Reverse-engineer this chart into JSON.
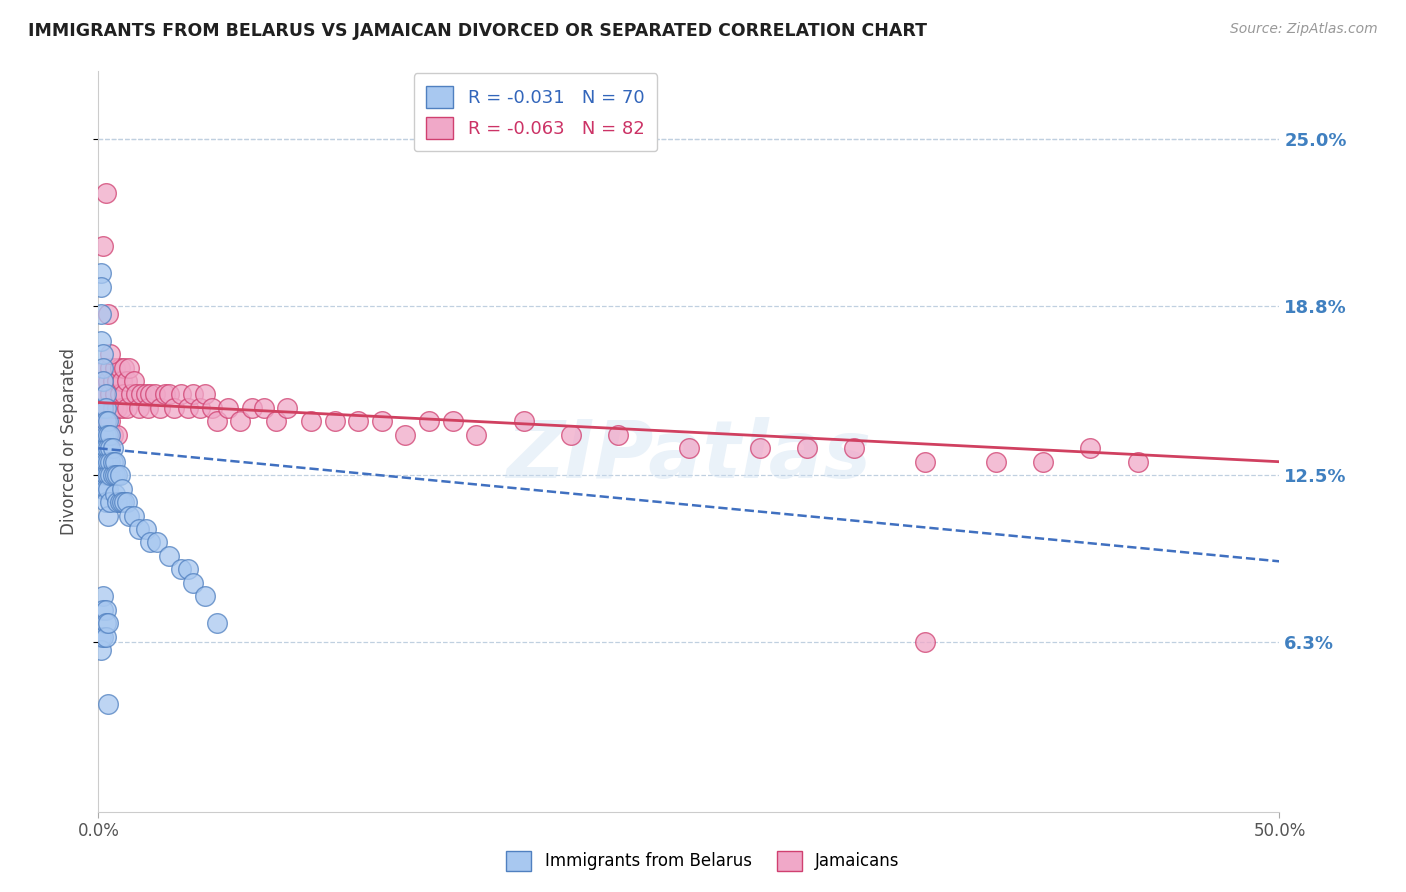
{
  "title": "IMMIGRANTS FROM BELARUS VS JAMAICAN DIVORCED OR SEPARATED CORRELATION CHART",
  "source": "Source: ZipAtlas.com",
  "ylabel": "Divorced or Separated",
  "ytick_labels": [
    "25.0%",
    "18.8%",
    "12.5%",
    "6.3%"
  ],
  "ytick_values": [
    0.25,
    0.188,
    0.125,
    0.063
  ],
  "xlim": [
    0.0,
    0.5
  ],
  "ylim": [
    0.0,
    0.275
  ],
  "legend_blue_r": "R = -0.031",
  "legend_blue_n": "N = 70",
  "legend_pink_r": "R = -0.063",
  "legend_pink_n": "N = 82",
  "blue_color": "#a8c8f0",
  "pink_color": "#f0a8c8",
  "blue_edge_color": "#5080c0",
  "pink_edge_color": "#d04070",
  "blue_line_color": "#4070c0",
  "pink_line_color": "#d04060",
  "grid_color": "#c0d0e0",
  "title_color": "#202020",
  "axis_label_color": "#505050",
  "right_tick_color": "#4080c0",
  "watermark": "ZIPatlas",
  "blue_scatter_x": [
    0.001,
    0.001,
    0.001,
    0.001,
    0.002,
    0.002,
    0.002,
    0.002,
    0.002,
    0.002,
    0.002,
    0.002,
    0.002,
    0.003,
    0.003,
    0.003,
    0.003,
    0.003,
    0.003,
    0.003,
    0.003,
    0.003,
    0.004,
    0.004,
    0.004,
    0.004,
    0.004,
    0.004,
    0.004,
    0.005,
    0.005,
    0.005,
    0.005,
    0.005,
    0.006,
    0.006,
    0.006,
    0.007,
    0.007,
    0.007,
    0.008,
    0.008,
    0.009,
    0.009,
    0.01,
    0.01,
    0.011,
    0.012,
    0.013,
    0.015,
    0.017,
    0.02,
    0.022,
    0.025,
    0.03,
    0.035,
    0.038,
    0.04,
    0.045,
    0.05,
    0.001,
    0.001,
    0.002,
    0.002,
    0.002,
    0.003,
    0.003,
    0.003,
    0.004,
    0.004
  ],
  "blue_scatter_y": [
    0.2,
    0.195,
    0.185,
    0.175,
    0.17,
    0.165,
    0.16,
    0.15,
    0.14,
    0.135,
    0.13,
    0.125,
    0.12,
    0.155,
    0.15,
    0.145,
    0.14,
    0.135,
    0.13,
    0.125,
    0.12,
    0.115,
    0.145,
    0.14,
    0.135,
    0.13,
    0.125,
    0.12,
    0.11,
    0.14,
    0.135,
    0.13,
    0.125,
    0.115,
    0.135,
    0.13,
    0.125,
    0.13,
    0.125,
    0.118,
    0.125,
    0.115,
    0.125,
    0.115,
    0.12,
    0.115,
    0.115,
    0.115,
    0.11,
    0.11,
    0.105,
    0.105,
    0.1,
    0.1,
    0.095,
    0.09,
    0.09,
    0.085,
    0.08,
    0.07,
    0.065,
    0.06,
    0.08,
    0.075,
    0.065,
    0.075,
    0.07,
    0.065,
    0.07,
    0.04
  ],
  "pink_scatter_x": [
    0.001,
    0.001,
    0.002,
    0.002,
    0.002,
    0.003,
    0.003,
    0.003,
    0.004,
    0.004,
    0.004,
    0.005,
    0.005,
    0.005,
    0.006,
    0.006,
    0.006,
    0.007,
    0.007,
    0.008,
    0.008,
    0.008,
    0.009,
    0.009,
    0.01,
    0.01,
    0.011,
    0.011,
    0.012,
    0.012,
    0.013,
    0.014,
    0.015,
    0.016,
    0.017,
    0.018,
    0.02,
    0.021,
    0.022,
    0.024,
    0.026,
    0.028,
    0.03,
    0.032,
    0.035,
    0.038,
    0.04,
    0.043,
    0.045,
    0.048,
    0.05,
    0.055,
    0.06,
    0.065,
    0.07,
    0.075,
    0.08,
    0.09,
    0.1,
    0.11,
    0.12,
    0.13,
    0.14,
    0.15,
    0.16,
    0.18,
    0.2,
    0.22,
    0.25,
    0.28,
    0.3,
    0.32,
    0.35,
    0.38,
    0.4,
    0.42,
    0.44,
    0.002,
    0.003,
    0.004,
    0.005,
    0.35
  ],
  "pink_scatter_y": [
    0.155,
    0.145,
    0.16,
    0.15,
    0.14,
    0.165,
    0.155,
    0.145,
    0.16,
    0.15,
    0.14,
    0.165,
    0.155,
    0.145,
    0.16,
    0.15,
    0.14,
    0.165,
    0.155,
    0.16,
    0.15,
    0.14,
    0.165,
    0.155,
    0.16,
    0.15,
    0.165,
    0.155,
    0.16,
    0.15,
    0.165,
    0.155,
    0.16,
    0.155,
    0.15,
    0.155,
    0.155,
    0.15,
    0.155,
    0.155,
    0.15,
    0.155,
    0.155,
    0.15,
    0.155,
    0.15,
    0.155,
    0.15,
    0.155,
    0.15,
    0.145,
    0.15,
    0.145,
    0.15,
    0.15,
    0.145,
    0.15,
    0.145,
    0.145,
    0.145,
    0.145,
    0.14,
    0.145,
    0.145,
    0.14,
    0.145,
    0.14,
    0.14,
    0.135,
    0.135,
    0.135,
    0.135,
    0.13,
    0.13,
    0.13,
    0.135,
    0.13,
    0.21,
    0.23,
    0.185,
    0.17,
    0.063
  ],
  "blue_regline_x": [
    0.0,
    0.5
  ],
  "blue_regline_y": [
    0.135,
    0.093
  ],
  "pink_regline_x": [
    0.0,
    0.5
  ],
  "pink_regline_y": [
    0.152,
    0.13
  ]
}
